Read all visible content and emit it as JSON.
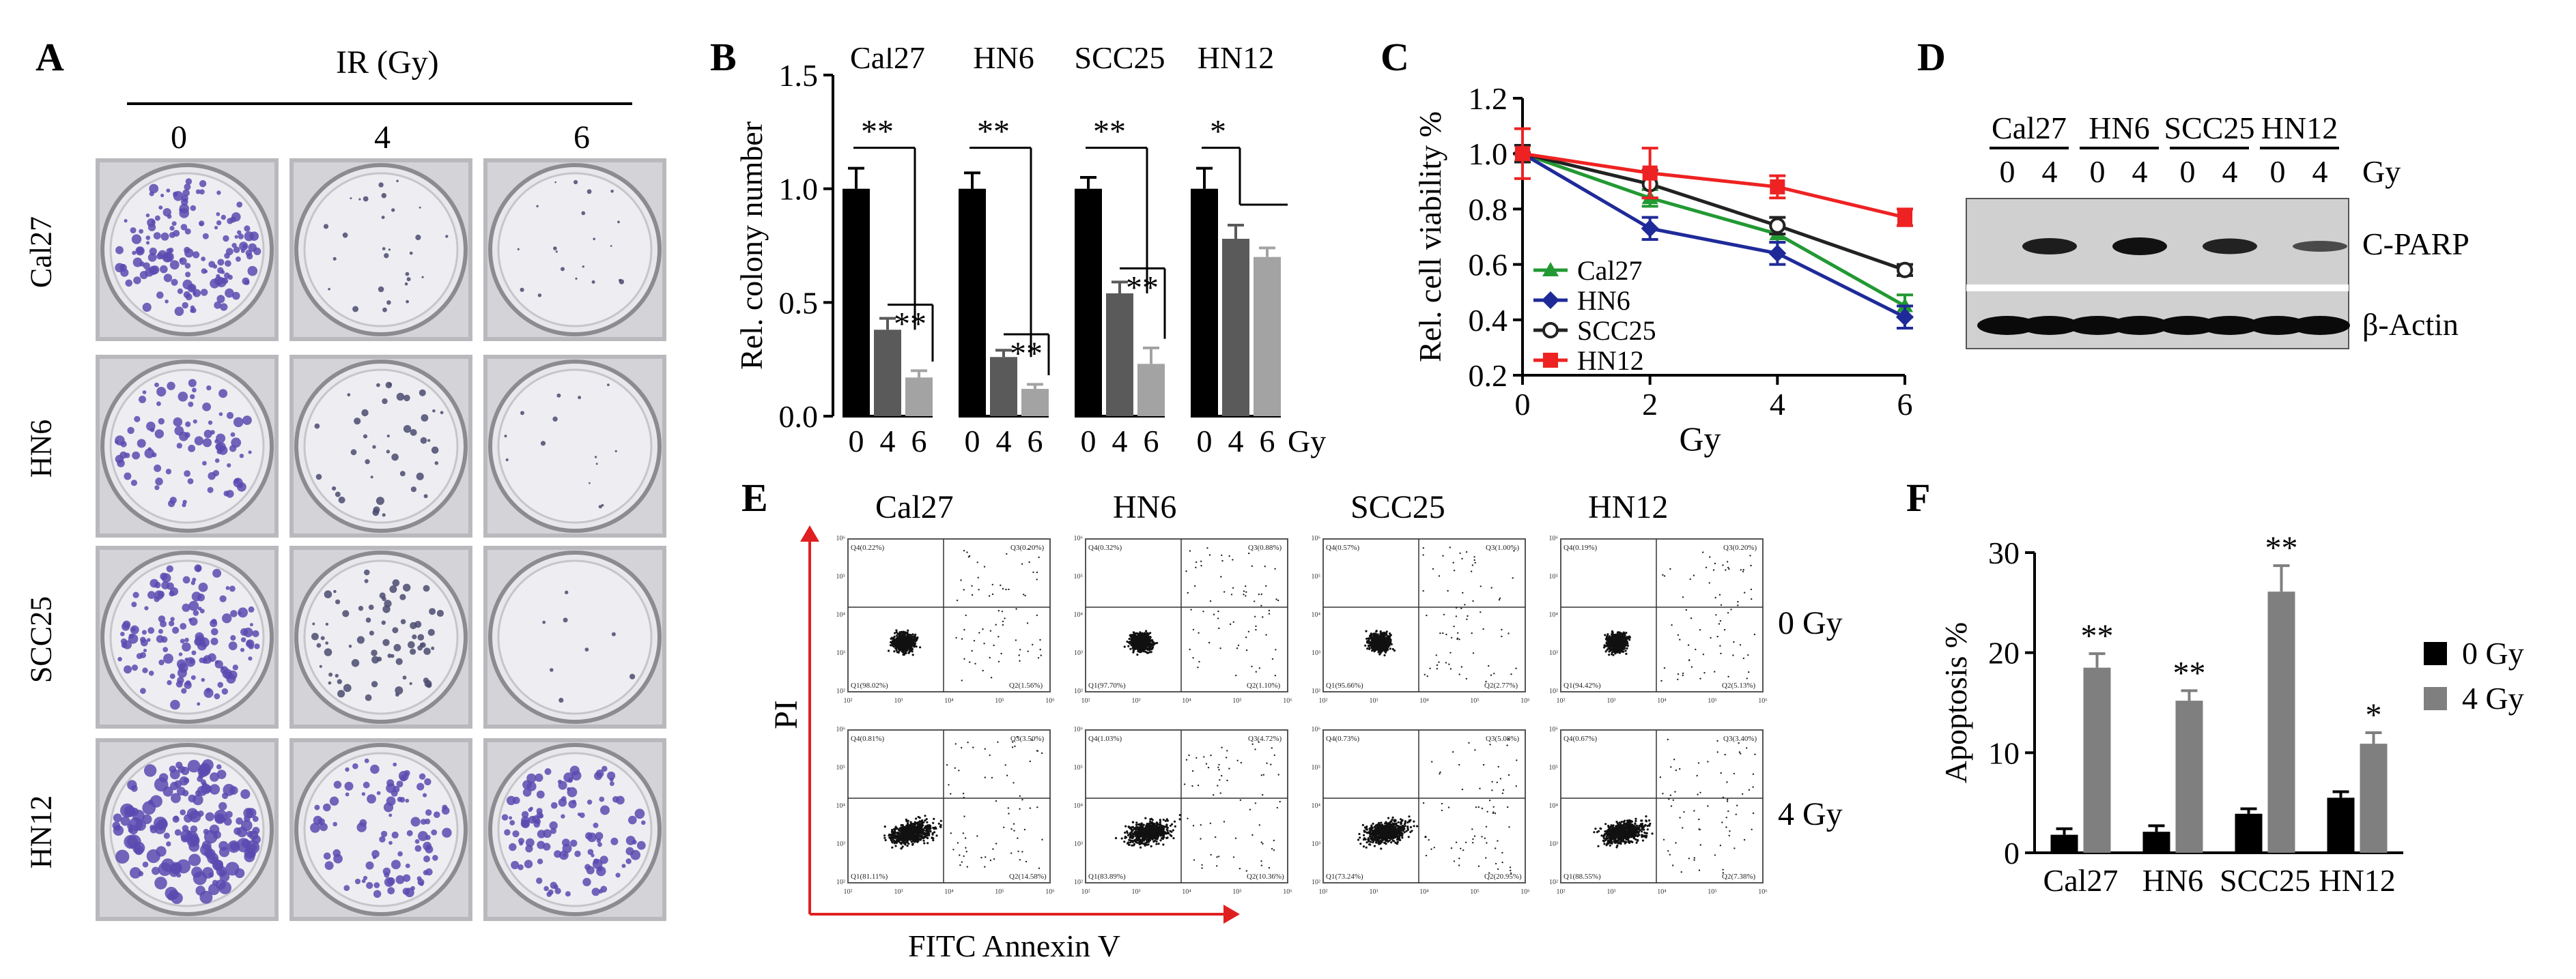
{
  "panels": {
    "a": "A",
    "b": "B",
    "c": "C",
    "d": "D",
    "e": "E",
    "f": "F"
  },
  "colony_assay": {
    "ir_header": "IR (Gy)",
    "doses": [
      "0",
      "4",
      "6"
    ],
    "cell_lines": [
      "Cal27",
      "HN6",
      "SCC25",
      "HN12"
    ]
  },
  "colony_chart": {
    "chart_data": {
      "type": "bar",
      "ylabel": "Rel. colony number",
      "ylim": [
        0,
        1.5
      ],
      "yticks": [
        "0.0",
        "0.5",
        "1.0",
        "1.5"
      ],
      "x_unit": "Gy",
      "colors": [
        "#000000",
        "#5a5a5a",
        "#a3a3a3"
      ],
      "groups": [
        {
          "name": "Cal27",
          "categories": [
            "0",
            "4",
            "6"
          ],
          "values": [
            1.0,
            0.38,
            0.17
          ],
          "errors": [
            0.09,
            0.05,
            0.03
          ],
          "sig": [
            "**",
            "**"
          ]
        },
        {
          "name": "HN6",
          "categories": [
            "0",
            "4",
            "6"
          ],
          "values": [
            1.0,
            0.26,
            0.12
          ],
          "errors": [
            0.07,
            0.03,
            0.02
          ],
          "sig": [
            "**",
            "**"
          ]
        },
        {
          "name": "SCC25",
          "categories": [
            "0",
            "4",
            "6"
          ],
          "values": [
            1.0,
            0.54,
            0.23
          ],
          "errors": [
            0.05,
            0.05,
            0.07
          ],
          "sig": [
            "**",
            "**"
          ]
        },
        {
          "name": "HN12",
          "categories": [
            "0",
            "4",
            "6"
          ],
          "values": [
            1.0,
            0.78,
            0.7
          ],
          "errors": [
            0.09,
            0.06,
            0.04
          ],
          "sig": [
            "*"
          ]
        }
      ]
    }
  },
  "viability_chart": {
    "chart_data": {
      "type": "line",
      "ylabel": "Rel. cell viability %",
      "xlabel": "Gy",
      "ylim": [
        0.2,
        1.2
      ],
      "yticks": [
        "0.2",
        "0.4",
        "0.6",
        "0.8",
        "1.0",
        "1.2"
      ],
      "xlim": [
        0,
        6
      ],
      "xticks": [
        "0",
        "2",
        "4",
        "6"
      ],
      "x": [
        0,
        2,
        4,
        6
      ],
      "series": [
        {
          "name": "Cal27",
          "color": "#229933",
          "marker": "triangle",
          "values": [
            1.0,
            0.84,
            0.71,
            0.45
          ],
          "errors": [
            0.03,
            0.03,
            0.03,
            0.04
          ]
        },
        {
          "name": "HN6",
          "color": "#1f2a99",
          "marker": "diamond",
          "values": [
            1.0,
            0.73,
            0.64,
            0.41
          ],
          "errors": [
            0.03,
            0.04,
            0.04,
            0.04
          ]
        },
        {
          "name": "SCC25",
          "color": "#222222",
          "marker": "circle",
          "values": [
            1.0,
            0.89,
            0.74,
            0.58
          ],
          "errors": [
            0.03,
            0.05,
            0.03,
            0.02
          ]
        },
        {
          "name": "HN12",
          "color": "#ee2222",
          "marker": "square",
          "values": [
            1.0,
            0.93,
            0.88,
            0.77
          ],
          "errors": [
            0.09,
            0.09,
            0.04,
            0.03
          ]
        }
      ]
    }
  },
  "western_blot": {
    "cell_lines": [
      "Cal27",
      "HN6",
      "SCC25",
      "HN12"
    ],
    "doses": [
      "0",
      "4",
      "0",
      "4",
      "0",
      "4",
      "0",
      "4"
    ],
    "dose_unit": "Gy",
    "rows": [
      "C-PARP",
      "β-Actin"
    ],
    "cparp_intensity": [
      0.0,
      0.9,
      0.0,
      1.0,
      0.0,
      0.85,
      0.0,
      0.5
    ]
  },
  "flow": {
    "cell_lines": [
      "Cal27",
      "HN6",
      "SCC25",
      "HN12"
    ],
    "ylabel": "PI",
    "xlabel": "FITC Annexin V",
    "ticks": [
      "10²",
      "10³",
      "10⁴",
      "10⁵",
      "10⁶"
    ],
    "rows": [
      {
        "label": "0 Gy",
        "plots": [
          {
            "q4": "Q4(0.22%)",
            "q3": "Q3(0.20%)",
            "q1": "Q1(98.02%)",
            "q2": "Q2(1.56%)"
          },
          {
            "q4": "Q4(0.32%)",
            "q3": "Q3(0.88%)",
            "q1": "Q1(97.70%)",
            "q2": "Q2(1.10%)"
          },
          {
            "q4": "Q4(0.57%)",
            "q3": "Q3(1.00%)",
            "q1": "Q1(95.66%)",
            "q2": "Q2(2.77%)"
          },
          {
            "q4": "Q4(0.19%)",
            "q3": "Q3(0.20%)",
            "q1": "Q1(94.42%)",
            "q2": "Q2(5.13%)"
          }
        ]
      },
      {
        "label": "4 Gy",
        "plots": [
          {
            "q4": "Q4(0.81%)",
            "q3": "Q3(3.50%)",
            "q1": "Q1(81.11%)",
            "q2": "Q2(14.58%)"
          },
          {
            "q4": "Q4(1.03%)",
            "q3": "Q3(4.72%)",
            "q1": "Q1(83.89%)",
            "q2": "Q2(10.36%)"
          },
          {
            "q4": "Q4(0.73%)",
            "q3": "Q3(5.08%)",
            "q1": "Q1(73.24%)",
            "q2": "Q2(20.95%)"
          },
          {
            "q4": "Q4(0.67%)",
            "q3": "Q3(3.40%)",
            "q1": "Q1(88.55%)",
            "q2": "Q2(7.38%)"
          }
        ]
      }
    ]
  },
  "apoptosis_chart": {
    "chart_data": {
      "type": "bar",
      "ylabel": "Apoptosis %",
      "ylim": [
        0,
        30
      ],
      "yticks": [
        "0",
        "10",
        "20",
        "30"
      ],
      "categories": [
        "Cal27",
        "HN6",
        "SCC25",
        "HN12"
      ],
      "series": [
        {
          "name": "0 Gy",
          "color": "#000000",
          "values": [
            1.8,
            2.1,
            3.9,
            5.5
          ],
          "errors": [
            0.6,
            0.6,
            0.5,
            0.6
          ]
        },
        {
          "name": "4 Gy",
          "color": "#7f7f7f",
          "values": [
            18.5,
            15.2,
            26.1,
            10.9
          ],
          "errors": [
            1.4,
            1.0,
            2.6,
            1.1
          ]
        }
      ],
      "sig": [
        "**",
        "**",
        "**",
        "*"
      ]
    }
  }
}
